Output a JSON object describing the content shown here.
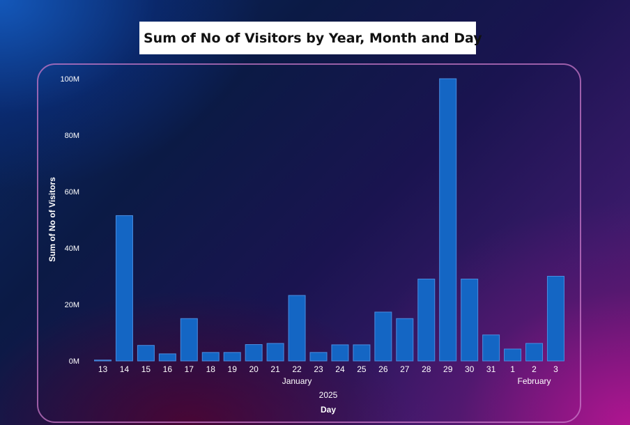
{
  "title": "Sum of No of Visitors by Year, Month and Day",
  "colors": {
    "bar": "#1466c4",
    "bar_stroke": "#4a8ce0",
    "text": "#ffffff",
    "card_border": "#c878c8"
  },
  "chart_data": {
    "type": "bar",
    "title": "Sum of No of Visitors by Year, Month and Day",
    "ylabel": "Sum of No of Visitors",
    "xlabel": "Day",
    "ylim": [
      0,
      100000000
    ],
    "yticks": [
      {
        "value": 0,
        "label": "0M"
      },
      {
        "value": 20000000,
        "label": "20M"
      },
      {
        "value": 40000000,
        "label": "40M"
      },
      {
        "value": 60000000,
        "label": "60M"
      },
      {
        "value": 80000000,
        "label": "80M"
      },
      {
        "value": 100000000,
        "label": "100M"
      }
    ],
    "grid": false,
    "categories": [
      "13",
      "14",
      "15",
      "16",
      "17",
      "18",
      "19",
      "20",
      "21",
      "22",
      "23",
      "24",
      "25",
      "26",
      "27",
      "28",
      "29",
      "30",
      "31",
      "1",
      "2",
      "3"
    ],
    "values": [
      300000,
      51500000,
      5500000,
      2500000,
      15000000,
      3000000,
      3000000,
      5800000,
      6200000,
      23200000,
      3000000,
      5700000,
      5700000,
      17300000,
      15000000,
      29000000,
      100000000,
      29000000,
      9200000,
      4200000,
      6200000,
      30000000
    ],
    "month_groups": [
      {
        "label": "January",
        "from": 0,
        "to": 18
      },
      {
        "label": "February",
        "from": 19,
        "to": 21
      }
    ],
    "year_label": "2025"
  }
}
